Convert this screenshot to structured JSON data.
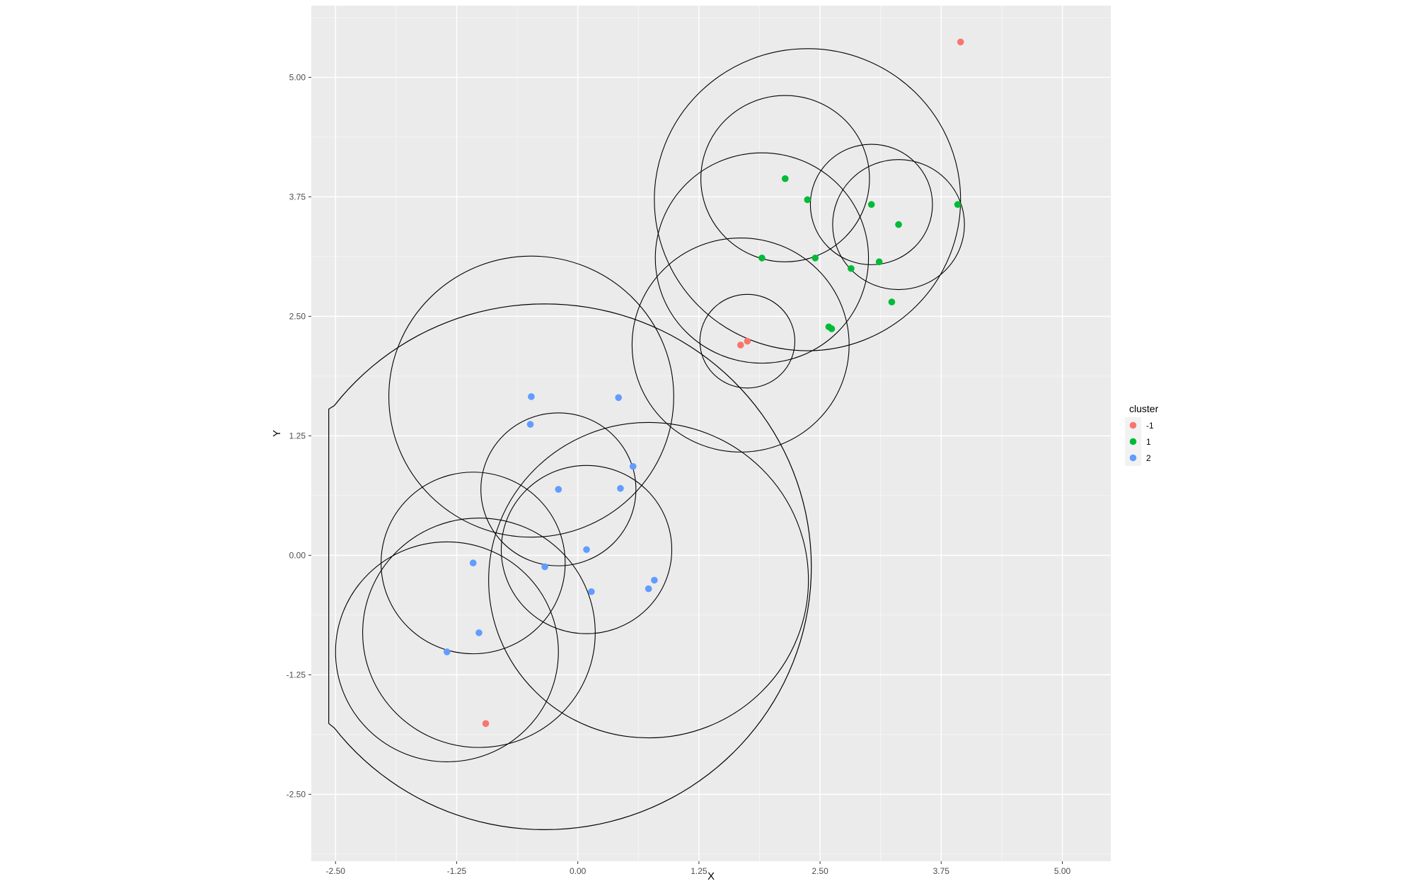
{
  "chart_data": {
    "type": "scatter",
    "title": "",
    "xlabel": "X",
    "ylabel": "Y",
    "xlim": [
      -2.75,
      5.5
    ],
    "ylim": [
      -3.2,
      5.75
    ],
    "x_ticks": [
      -2.5,
      -1.25,
      0,
      1.25,
      2.5,
      3.75,
      5
    ],
    "x_tick_labels": [
      "-2.50",
      "-1.25",
      "0.00",
      "1.25",
      "2.50",
      "3.75",
      "5.00"
    ],
    "y_ticks": [
      -2.5,
      -1.25,
      0,
      1.25,
      2.5,
      3.75,
      5
    ],
    "y_tick_labels": [
      "-2.50",
      "-1.25",
      "0.00",
      "1.25",
      "2.50",
      "3.75",
      "5.00"
    ],
    "grid": true,
    "legend": {
      "title": "cluster",
      "placement": "right"
    },
    "series": [
      {
        "name": "-1",
        "color": "#F8766D",
        "points": [
          [
            3.95,
            5.37
          ],
          [
            1.68,
            2.2
          ],
          [
            1.75,
            2.24
          ],
          [
            -0.95,
            -1.76
          ]
        ]
      },
      {
        "name": "1",
        "color": "#00BA38",
        "points": [
          [
            2.14,
            3.94
          ],
          [
            2.37,
            3.72
          ],
          [
            1.9,
            3.11
          ],
          [
            2.45,
            3.11
          ],
          [
            2.82,
            3.0
          ],
          [
            3.03,
            3.67
          ],
          [
            3.11,
            3.07
          ],
          [
            3.31,
            3.46
          ],
          [
            3.92,
            3.67
          ],
          [
            3.24,
            2.65
          ],
          [
            2.59,
            2.39
          ],
          [
            2.62,
            2.37
          ]
        ]
      },
      {
        "name": "2",
        "color": "#619CFF",
        "points": [
          [
            -0.48,
            1.66
          ],
          [
            0.42,
            1.65
          ],
          [
            -0.49,
            1.37
          ],
          [
            0.57,
            0.93
          ],
          [
            -0.2,
            0.69
          ],
          [
            0.44,
            0.7
          ],
          [
            -1.08,
            -0.08
          ],
          [
            -0.34,
            -0.12
          ],
          [
            0.09,
            0.06
          ],
          [
            0.14,
            -0.38
          ],
          [
            0.73,
            -0.35
          ],
          [
            0.79,
            -0.26
          ],
          [
            -1.02,
            -0.81
          ],
          [
            -1.35,
            -1.01
          ]
        ]
      }
    ],
    "circles": [
      {
        "cx": 2.37,
        "cy": 3.72,
        "r": 1.58
      },
      {
        "cx": 2.14,
        "cy": 3.94,
        "r": 0.87
      },
      {
        "cx": 3.03,
        "cy": 3.67,
        "r": 0.63
      },
      {
        "cx": 3.31,
        "cy": 3.46,
        "r": 0.68
      },
      {
        "cx": 1.9,
        "cy": 3.11,
        "r": 1.1
      },
      {
        "cx": 1.68,
        "cy": 2.2,
        "r": 1.12
      },
      {
        "cx": 1.75,
        "cy": 2.24,
        "r": 0.49
      },
      {
        "cx": -0.48,
        "cy": 1.66,
        "r": 1.47
      },
      {
        "cx": -0.2,
        "cy": 0.69,
        "r": 0.8
      },
      {
        "cx": 0.73,
        "cy": -0.26,
        "r": 1.65
      },
      {
        "cx": 0.09,
        "cy": 0.06,
        "r": 0.88
      },
      {
        "cx": -1.08,
        "cy": -0.08,
        "r": 0.95
      },
      {
        "cx": -1.02,
        "cy": -0.81,
        "r": 1.2
      },
      {
        "cx": -1.35,
        "cy": -1.01,
        "r": 1.15
      }
    ],
    "hull": {
      "arc_center": [
        -0.34,
        -0.12
      ],
      "arc_radius": 2.75,
      "line_x": -2.57,
      "line_y": [
        -1.76,
        1.53
      ]
    }
  }
}
